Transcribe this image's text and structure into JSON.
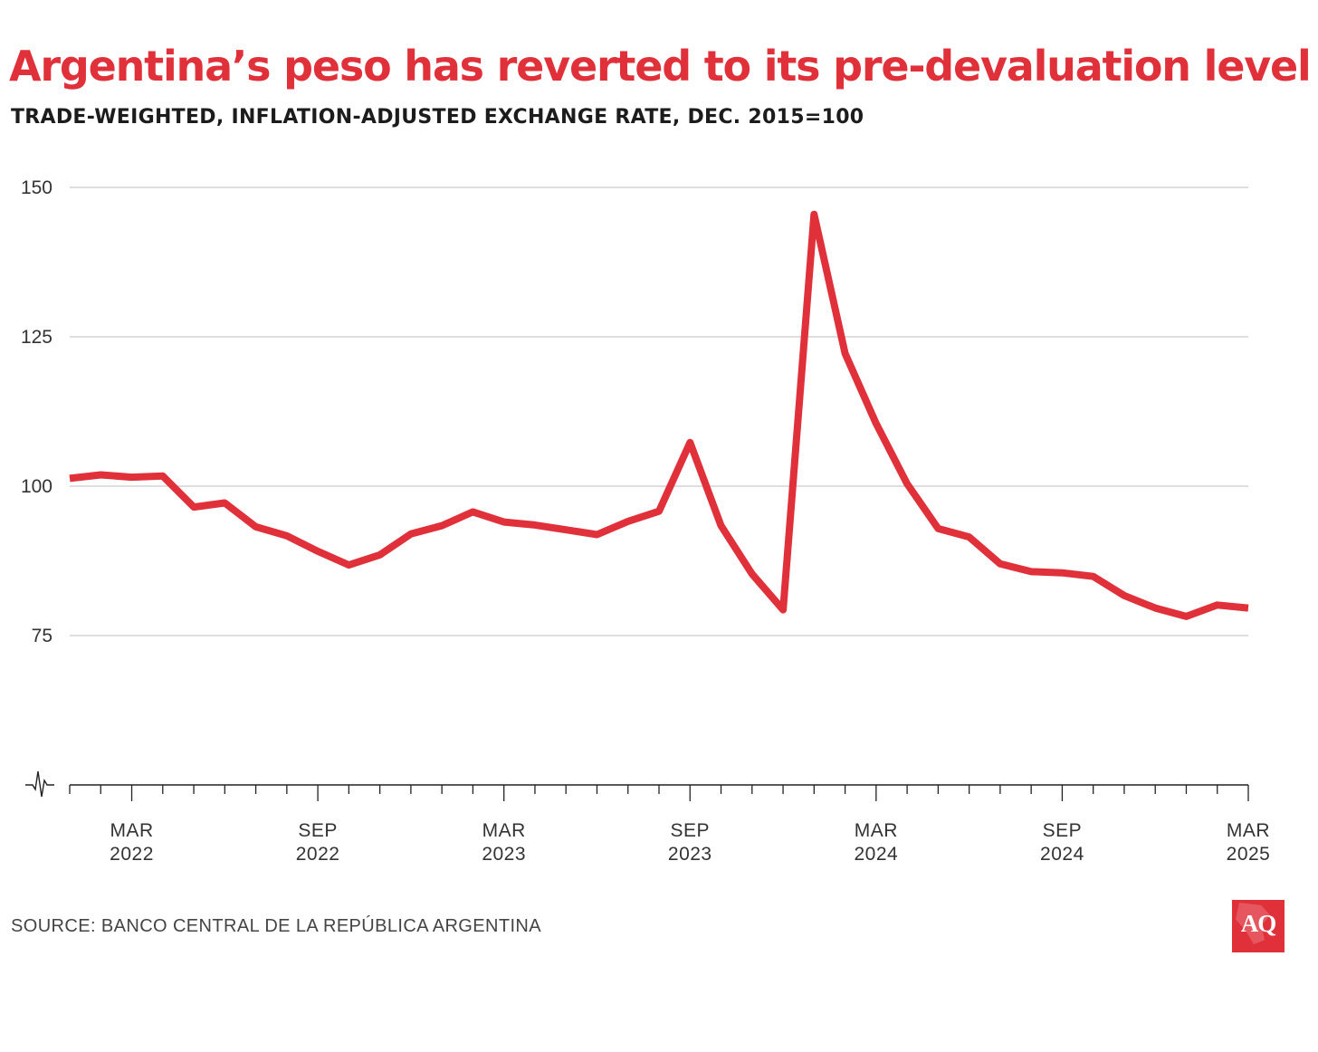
{
  "header": {
    "title": "Argentina’s peso has reverted to its pre-devaluation level",
    "subtitle": "TRADE-WEIGHTED, INFLATION-ADJUSTED EXCHANGE RATE, DEC. 2015=100"
  },
  "footer": {
    "source": "SOURCE: BANCO CENTRAL DE LA REPÚBLICA ARGENTINA",
    "logo_text": "AQ"
  },
  "colors": {
    "accent": "#e0313b",
    "text": "#1c1c1c",
    "grid": "#bdbdbd",
    "axis": "#222222"
  },
  "chart_data": {
    "type": "line",
    "title": "Argentina’s peso has reverted to its pre-devaluation level",
    "subtitle": "TRADE-WEIGHTED, INFLATION-ADJUSTED EXCHANGE RATE, DEC. 2015=100",
    "xlabel": "",
    "ylabel": "",
    "ylim": [
      50,
      150
    ],
    "yticks": [
      75,
      100,
      125,
      150
    ],
    "y_axis_break": true,
    "grid": "horizontal",
    "x_range": [
      "2022-01",
      "2025-03"
    ],
    "xticks": [
      {
        "date": "2022-03",
        "month": "MAR",
        "year": "2022"
      },
      {
        "date": "2022-09",
        "month": "SEP",
        "year": "2022"
      },
      {
        "date": "2023-03",
        "month": "MAR",
        "year": "2023"
      },
      {
        "date": "2023-09",
        "month": "SEP",
        "year": "2023"
      },
      {
        "date": "2024-03",
        "month": "MAR",
        "year": "2024"
      },
      {
        "date": "2024-09",
        "month": "SEP",
        "year": "2024"
      },
      {
        "date": "2025-03",
        "month": "MAR",
        "year": "2025"
      }
    ],
    "series": [
      {
        "color": "#e0313b",
        "points": [
          {
            "x": "2022-01",
            "y": 101.3
          },
          {
            "x": "2022-02",
            "y": 101.9
          },
          {
            "x": "2022-03",
            "y": 101.5
          },
          {
            "x": "2022-04",
            "y": 101.7
          },
          {
            "x": "2022-05",
            "y": 96.5
          },
          {
            "x": "2022-06",
            "y": 97.2
          },
          {
            "x": "2022-07",
            "y": 93.2
          },
          {
            "x": "2022-08",
            "y": 91.7
          },
          {
            "x": "2022-09",
            "y": 89.1
          },
          {
            "x": "2022-10",
            "y": 86.8
          },
          {
            "x": "2022-11",
            "y": 88.5
          },
          {
            "x": "2022-12",
            "y": 92.0
          },
          {
            "x": "2023-01",
            "y": 93.4
          },
          {
            "x": "2023-02",
            "y": 95.7
          },
          {
            "x": "2023-03",
            "y": 94.0
          },
          {
            "x": "2023-04",
            "y": 93.5
          },
          {
            "x": "2023-05",
            "y": 92.7
          },
          {
            "x": "2023-06",
            "y": 91.9
          },
          {
            "x": "2023-07",
            "y": 94.1
          },
          {
            "x": "2023-08",
            "y": 95.8
          },
          {
            "x": "2023-09",
            "y": 107.3
          },
          {
            "x": "2023-10",
            "y": 93.4
          },
          {
            "x": "2023-11",
            "y": 85.3
          },
          {
            "x": "2023-12",
            "y": 79.3
          },
          {
            "x": "2024-01",
            "y": 145.5
          },
          {
            "x": "2024-02",
            "y": 122.2
          },
          {
            "x": "2024-03",
            "y": 110.5
          },
          {
            "x": "2024-04",
            "y": 100.4
          },
          {
            "x": "2024-05",
            "y": 92.9
          },
          {
            "x": "2024-06",
            "y": 91.5
          },
          {
            "x": "2024-07",
            "y": 87.0
          },
          {
            "x": "2024-08",
            "y": 85.7
          },
          {
            "x": "2024-09",
            "y": 85.5
          },
          {
            "x": "2024-10",
            "y": 84.9
          },
          {
            "x": "2024-11",
            "y": 81.7
          },
          {
            "x": "2024-12",
            "y": 79.6
          },
          {
            "x": "2025-01",
            "y": 78.2
          },
          {
            "x": "2025-02",
            "y": 80.1
          },
          {
            "x": "2025-03",
            "y": 79.6
          }
        ]
      }
    ]
  }
}
